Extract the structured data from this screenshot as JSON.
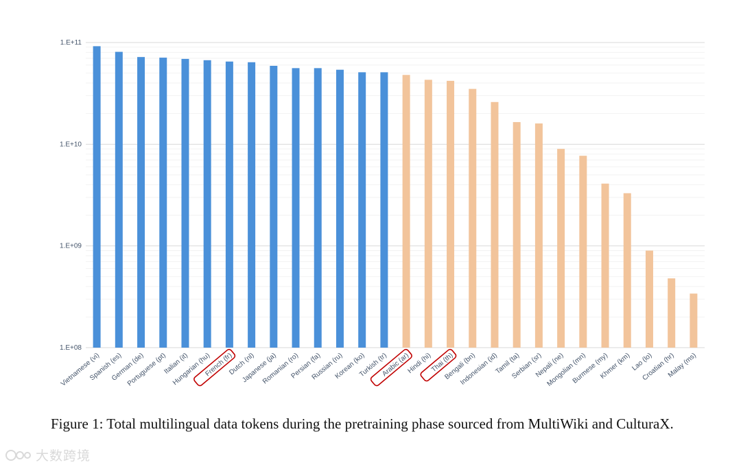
{
  "chart_data": {
    "type": "bar",
    "yscale": "log",
    "ylim": [
      100000000,
      100000000000
    ],
    "yticks": [
      {
        "value": 100000000,
        "label": "1.E+08"
      },
      {
        "value": 1000000000,
        "label": "1.E+09"
      },
      {
        "value": 10000000000,
        "label": "1.E+10"
      },
      {
        "value": 100000000000,
        "label": "1.E+11"
      }
    ],
    "grid": true,
    "colors": {
      "group_a": "#4a90d9",
      "group_b": "#f2c49b",
      "highlight": "#c00000"
    },
    "bars": [
      {
        "label": "Vietnamese (vi)",
        "value": 92000000000,
        "group": "a",
        "highlight": false
      },
      {
        "label": "Spanish (es)",
        "value": 81000000000,
        "group": "a",
        "highlight": false
      },
      {
        "label": "German (de)",
        "value": 72000000000,
        "group": "a",
        "highlight": false
      },
      {
        "label": "Portuguese (pt)",
        "value": 71000000000,
        "group": "a",
        "highlight": false
      },
      {
        "label": "Italian (it)",
        "value": 69000000000,
        "group": "a",
        "highlight": false
      },
      {
        "label": "Hungarian (hu)",
        "value": 67000000000,
        "group": "a",
        "highlight": false
      },
      {
        "label": "French (fr)",
        "value": 65000000000,
        "group": "a",
        "highlight": true
      },
      {
        "label": "Dutch (nl)",
        "value": 64000000000,
        "group": "a",
        "highlight": false
      },
      {
        "label": "Japanese (ja)",
        "value": 59000000000,
        "group": "a",
        "highlight": false
      },
      {
        "label": "Romanian (ro)",
        "value": 56000000000,
        "group": "a",
        "highlight": false
      },
      {
        "label": "Persian (fa)",
        "value": 56000000000,
        "group": "a",
        "highlight": false
      },
      {
        "label": "Russian (ru)",
        "value": 54000000000,
        "group": "a",
        "highlight": false
      },
      {
        "label": "Korean (ko)",
        "value": 51000000000,
        "group": "a",
        "highlight": false
      },
      {
        "label": "Turkish (tr)",
        "value": 51000000000,
        "group": "a",
        "highlight": false
      },
      {
        "label": "Arabic (ar)",
        "value": 48000000000,
        "group": "b",
        "highlight": true
      },
      {
        "label": "Hindi (hi)",
        "value": 43000000000,
        "group": "b",
        "highlight": false
      },
      {
        "label": "Thai (th)",
        "value": 42000000000,
        "group": "b",
        "highlight": true
      },
      {
        "label": "Bengali (bn)",
        "value": 35000000000,
        "group": "b",
        "highlight": false
      },
      {
        "label": "Indonesian (id)",
        "value": 26000000000,
        "group": "b",
        "highlight": false
      },
      {
        "label": "Tamil (ta)",
        "value": 16500000000,
        "group": "b",
        "highlight": false
      },
      {
        "label": "Serbian (sr)",
        "value": 16000000000,
        "group": "b",
        "highlight": false
      },
      {
        "label": "Nepali (ne)",
        "value": 9000000000,
        "group": "b",
        "highlight": false
      },
      {
        "label": "Mongolian (mn)",
        "value": 7700000000,
        "group": "b",
        "highlight": false
      },
      {
        "label": "Burmese (my)",
        "value": 4100000000,
        "group": "b",
        "highlight": false
      },
      {
        "label": "Khmer (km)",
        "value": 3300000000,
        "group": "b",
        "highlight": false
      },
      {
        "label": "Lao (lo)",
        "value": 900000000,
        "group": "b",
        "highlight": false
      },
      {
        "label": "Croatian (hr)",
        "value": 480000000,
        "group": "b",
        "highlight": false
      },
      {
        "label": "Malay (ms)",
        "value": 340000000,
        "group": "b",
        "highlight": false
      }
    ]
  },
  "caption": "Figure 1: Total multilingual data tokens during the pretraining phase sourced from MultiWiki and CulturaX.",
  "watermark": "大数跨境"
}
